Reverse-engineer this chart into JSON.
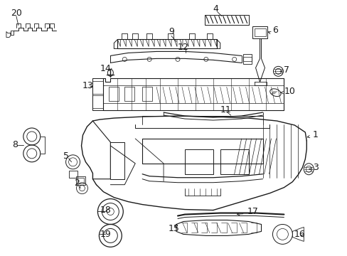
{
  "bg_color": "#ffffff",
  "fig_width": 4.89,
  "fig_height": 3.6,
  "dpi": 100,
  "lc": "#1a1a1a",
  "lc2": "#2a2a2a",
  "fs": 8.5
}
